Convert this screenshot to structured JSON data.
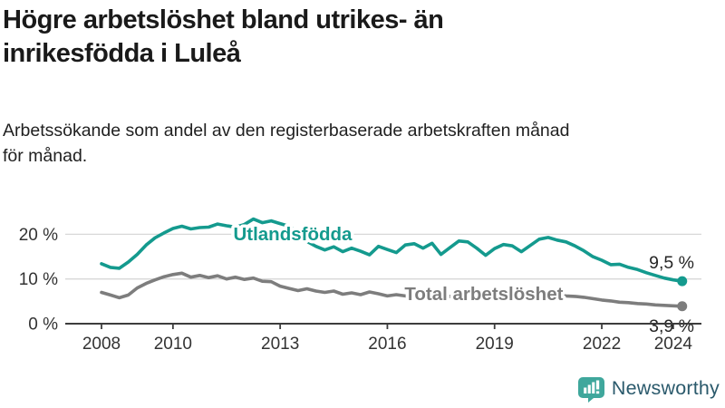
{
  "header": {
    "title_line1": "Högre arbetslöshet bland utrikes- än",
    "title_line2": "inrikesfödda i Luleå",
    "subtitle_line1": "Arbetssökande som andel av den registerbaserade arbetskraften månad",
    "subtitle_line2": "för månad."
  },
  "chart_data": {
    "type": "line",
    "title": "",
    "xlabel": "",
    "ylabel": "",
    "grid": "horizontal",
    "ylim": [
      0,
      25
    ],
    "yticks": [
      0,
      10,
      20
    ],
    "ytick_labels": [
      "0 %",
      "10 %",
      "20 %"
    ],
    "xticks": [
      2008,
      2010,
      2013,
      2016,
      2019,
      2022,
      2024
    ],
    "axis_color": "#3d3d3d",
    "grid_color": "#d8d8d8",
    "tick_label_color": "#333333",
    "end_label_color": "#262626",
    "x": [
      2008,
      2008.25,
      2008.5,
      2008.75,
      2009,
      2009.25,
      2009.5,
      2009.75,
      2010,
      2010.25,
      2010.5,
      2010.75,
      2011,
      2011.25,
      2011.5,
      2011.75,
      2012,
      2012.25,
      2012.5,
      2012.75,
      2013,
      2013.25,
      2013.5,
      2013.75,
      2014,
      2014.25,
      2014.5,
      2014.75,
      2015,
      2015.25,
      2015.5,
      2015.75,
      2016,
      2016.25,
      2016.5,
      2016.75,
      2017,
      2017.25,
      2017.5,
      2017.75,
      2018,
      2018.25,
      2018.5,
      2018.75,
      2019,
      2019.25,
      2019.5,
      2019.75,
      2020,
      2020.25,
      2020.5,
      2020.75,
      2021,
      2021.25,
      2021.5,
      2021.75,
      2022,
      2022.25,
      2022.5,
      2022.75,
      2023,
      2023.25,
      2023.5,
      2023.75,
      2024,
      2024.25
    ],
    "series": [
      {
        "name": "Utlandsfödda",
        "color": "#149a8e",
        "end_label": "9,5 %",
        "label_at": {
          "year": 2013.35,
          "value": 18.7
        },
        "values": [
          13.4,
          12.6,
          12.4,
          13.8,
          15.5,
          17.6,
          19.2,
          20.3,
          21.3,
          21.8,
          21.2,
          21.5,
          21.6,
          22.3,
          21.9,
          21.6,
          22.2,
          23.4,
          22.6,
          23.0,
          22.4,
          21.8,
          20.3,
          18.4,
          17.3,
          16.5,
          17.2,
          16.1,
          16.9,
          16.2,
          15.4,
          17.3,
          16.6,
          15.9,
          17.6,
          17.9,
          16.9,
          18.0,
          15.5,
          17.0,
          18.5,
          18.3,
          16.9,
          15.3,
          16.8,
          17.7,
          17.4,
          16.1,
          17.5,
          18.9,
          19.3,
          18.7,
          18.3,
          17.4,
          16.3,
          15.0,
          14.2,
          13.2,
          13.3,
          12.6,
          12.1,
          11.4,
          10.8,
          10.2,
          9.8,
          9.5
        ]
      },
      {
        "name": "Total arbetslöshet",
        "color": "#7d7d7d",
        "end_label": "3,9 %",
        "label_at": {
          "year": 2018.7,
          "value": 5.3
        },
        "values": [
          7.0,
          6.4,
          5.8,
          6.4,
          8.0,
          9.0,
          9.8,
          10.5,
          11.0,
          11.3,
          10.4,
          10.8,
          10.3,
          10.7,
          10.0,
          10.4,
          9.9,
          10.2,
          9.5,
          9.4,
          8.4,
          7.9,
          7.4,
          7.8,
          7.3,
          7.0,
          7.3,
          6.6,
          6.9,
          6.5,
          7.1,
          6.7,
          6.2,
          6.5,
          6.2,
          6.4,
          6.2,
          6.0,
          5.9,
          6.1,
          6.0,
          5.8,
          5.9,
          6.1,
          5.9,
          6.0,
          5.8,
          5.9,
          6.1,
          6.5,
          6.6,
          6.4,
          6.2,
          6.1,
          5.9,
          5.6,
          5.3,
          5.1,
          4.8,
          4.7,
          4.5,
          4.4,
          4.2,
          4.1,
          4.0,
          3.9
        ]
      }
    ]
  },
  "footer": {
    "brand": "Newsworthy",
    "logo_icon": "bar-chart-speech-bubble-icon",
    "logo_color": "#3fa79c",
    "brand_text_color": "#2b5a6c"
  }
}
